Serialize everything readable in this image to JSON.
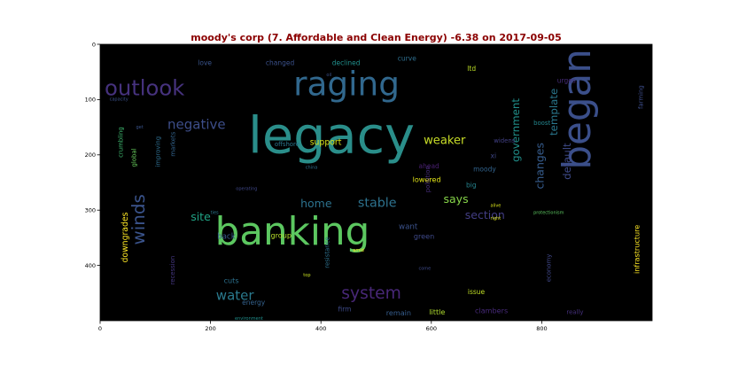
{
  "chart_data": {
    "type": "wordcloud",
    "title": "moody's corp (7. Affordable and Clean Energy) -6.38 on 2017-09-05",
    "xlim": [
      0,
      1000
    ],
    "ylim": [
      500,
      0
    ],
    "x_ticks": [
      0,
      200,
      400,
      600,
      800
    ],
    "y_ticks": [
      0,
      100,
      200,
      300,
      400
    ],
    "background": "#000000",
    "words": [
      {
        "text": "legacy",
        "x": 268,
        "y": 196,
        "size": 92,
        "color": "#2a8e8a",
        "rotate": 0
      },
      {
        "text": "banking",
        "x": 208,
        "y": 362,
        "size": 70,
        "color": "#5cc760",
        "rotate": 0
      },
      {
        "text": "began",
        "x": 888,
        "y": 227,
        "size": 70,
        "color": "#3b4f8a",
        "rotate": 90
      },
      {
        "text": "raging",
        "x": 350,
        "y": 92,
        "size": 60,
        "color": "#31688e",
        "rotate": 0
      },
      {
        "text": "outlook",
        "x": 8,
        "y": 92,
        "size": 39,
        "color": "#46327e",
        "rotate": 0
      },
      {
        "text": "winds",
        "x": 80,
        "y": 363,
        "size": 32,
        "color": "#3a538b",
        "rotate": 90
      },
      {
        "text": "system",
        "x": 437,
        "y": 460,
        "size": 30,
        "color": "#482777",
        "rotate": 0
      },
      {
        "text": "water",
        "x": 210,
        "y": 462,
        "size": 24,
        "color": "#2a7a8e",
        "rotate": 0
      },
      {
        "text": "negative",
        "x": 122,
        "y": 153,
        "size": 24,
        "color": "#3d4e8a",
        "rotate": 0
      },
      {
        "text": "stable",
        "x": 467,
        "y": 294,
        "size": 23,
        "color": "#2d728e",
        "rotate": 0
      },
      {
        "text": "weaker",
        "x": 586,
        "y": 180,
        "size": 21,
        "color": "#c9de28",
        "rotate": 0
      },
      {
        "text": "section",
        "x": 661,
        "y": 316,
        "size": 20,
        "color": "#433e85",
        "rotate": 0
      },
      {
        "text": "site",
        "x": 164,
        "y": 319,
        "size": 20,
        "color": "#20a385",
        "rotate": 0
      },
      {
        "text": "home",
        "x": 363,
        "y": 295,
        "size": 20,
        "color": "#2c728e",
        "rotate": 0
      },
      {
        "text": "says",
        "x": 622,
        "y": 287,
        "size": 20,
        "color": "#86d549",
        "rotate": 0
      },
      {
        "text": "changes",
        "x": 803,
        "y": 262,
        "size": 20,
        "color": "#365c8d",
        "rotate": 90
      },
      {
        "text": "template",
        "x": 828,
        "y": 165,
        "size": 19,
        "color": "#2a788e",
        "rotate": 90
      },
      {
        "text": "default",
        "x": 852,
        "y": 245,
        "size": 19,
        "color": "#3e4a89",
        "rotate": 90
      },
      {
        "text": "government",
        "x": 759,
        "y": 213,
        "size": 19,
        "color": "#21918c",
        "rotate": 90
      },
      {
        "text": "support",
        "x": 380,
        "y": 182,
        "size": 15,
        "color": "#d8e219",
        "rotate": 0
      },
      {
        "text": "downgrades",
        "x": 50,
        "y": 395,
        "size": 15,
        "color": "#fde725",
        "rotate": 90
      },
      {
        "text": "want",
        "x": 541,
        "y": 334,
        "size": 14,
        "color": "#3b528b",
        "rotate": 0
      },
      {
        "text": "back",
        "x": 212,
        "y": 352,
        "size": 14,
        "color": "#38588c",
        "rotate": 0
      },
      {
        "text": "lowered",
        "x": 566,
        "y": 249,
        "size": 13,
        "color": "#e2e418",
        "rotate": 0
      },
      {
        "text": "cuts",
        "x": 224,
        "y": 432,
        "size": 13,
        "color": "#2c718e",
        "rotate": 0
      },
      {
        "text": "group",
        "x": 309,
        "y": 350,
        "size": 13,
        "color": "#b5de2b",
        "rotate": 0
      },
      {
        "text": "green",
        "x": 568,
        "y": 352,
        "size": 13,
        "color": "#3e4989",
        "rotate": 0
      },
      {
        "text": "infrastructure",
        "x": 977,
        "y": 415,
        "size": 13,
        "color": "#fde725",
        "rotate": 90
      },
      {
        "text": "little",
        "x": 596,
        "y": 489,
        "size": 13,
        "color": "#b0dd2f",
        "rotate": 0
      },
      {
        "text": "remain",
        "x": 518,
        "y": 490,
        "size": 13,
        "color": "#365d8d",
        "rotate": 0
      },
      {
        "text": "clambers",
        "x": 679,
        "y": 486,
        "size": 13,
        "color": "#472a7a",
        "rotate": 0
      },
      {
        "text": "issue",
        "x": 666,
        "y": 452,
        "size": 12,
        "color": "#c0df25",
        "rotate": 0
      },
      {
        "text": "moody",
        "x": 676,
        "y": 230,
        "size": 12,
        "color": "#32648e",
        "rotate": 0
      },
      {
        "text": "big",
        "x": 663,
        "y": 259,
        "size": 12,
        "color": "#25838e",
        "rotate": 0
      },
      {
        "text": "ahead",
        "x": 577,
        "y": 224,
        "size": 12,
        "color": "#481f70",
        "rotate": 0
      },
      {
        "text": "xi",
        "x": 707,
        "y": 206,
        "size": 12,
        "color": "#3f4788",
        "rotate": 0
      },
      {
        "text": "firm",
        "x": 431,
        "y": 483,
        "size": 12,
        "color": "#3e4a89",
        "rotate": 0
      },
      {
        "text": "energy",
        "x": 257,
        "y": 471,
        "size": 12,
        "color": "#34618d",
        "rotate": 0
      },
      {
        "text": "declined",
        "x": 420,
        "y": 38,
        "size": 12,
        "color": "#21908d",
        "rotate": 0
      },
      {
        "text": "changed",
        "x": 300,
        "y": 38,
        "size": 12,
        "color": "#3b518b",
        "rotate": 0
      },
      {
        "text": "love",
        "x": 177,
        "y": 38,
        "size": 12,
        "color": "#3a548c",
        "rotate": 0
      },
      {
        "text": "curve",
        "x": 539,
        "y": 30,
        "size": 12,
        "color": "#2e6e8e",
        "rotate": 0
      },
      {
        "text": "ltd",
        "x": 665,
        "y": 48,
        "size": 12,
        "color": "#bddf26",
        "rotate": 0
      },
      {
        "text": "urges",
        "x": 828,
        "y": 70,
        "size": 12,
        "color": "#472d7b",
        "rotate": 0
      },
      {
        "text": "farming",
        "x": 983,
        "y": 117,
        "size": 11,
        "color": "#3d4d8a",
        "rotate": 90
      },
      {
        "text": "boost",
        "x": 785,
        "y": 146,
        "size": 11,
        "color": "#24868e",
        "rotate": 0
      },
      {
        "text": "widens",
        "x": 713,
        "y": 178,
        "size": 11,
        "color": "#424186",
        "rotate": 0
      },
      {
        "text": "offshore",
        "x": 316,
        "y": 184,
        "size": 11,
        "color": "#2a778e",
        "rotate": 0
      },
      {
        "text": "crumbling",
        "x": 41,
        "y": 205,
        "size": 11,
        "color": "#40bd72",
        "rotate": 90
      },
      {
        "text": "global",
        "x": 65,
        "y": 222,
        "size": 11,
        "color": "#67cc5c",
        "rotate": 90
      },
      {
        "text": "markets",
        "x": 136,
        "y": 203,
        "size": 11,
        "color": "#33638d",
        "rotate": 90
      },
      {
        "text": "improving",
        "x": 108,
        "y": 222,
        "size": 11,
        "color": "#2e6d8e",
        "rotate": 90
      },
      {
        "text": "pollution",
        "x": 597,
        "y": 268,
        "size": 11,
        "color": "#472d7b",
        "rotate": 90
      },
      {
        "text": "resistance",
        "x": 415,
        "y": 405,
        "size": 11,
        "color": "#2d718e",
        "rotate": 90
      },
      {
        "text": "economy",
        "x": 816,
        "y": 430,
        "size": 11,
        "color": "#3f4788",
        "rotate": 90
      },
      {
        "text": "recession",
        "x": 135,
        "y": 435,
        "size": 11,
        "color": "#453781",
        "rotate": 90
      },
      {
        "text": "really",
        "x": 845,
        "y": 488,
        "size": 11,
        "color": "#46307e",
        "rotate": 0
      },
      {
        "text": "protectionism",
        "x": 785,
        "y": 307,
        "size": 8,
        "color": "#5ec962",
        "rotate": 0
      },
      {
        "text": "capacity",
        "x": 17,
        "y": 102,
        "size": 8,
        "color": "#3b518b",
        "rotate": 0
      },
      {
        "text": "get",
        "x": 65,
        "y": 152,
        "size": 8,
        "color": "#3a548c",
        "rotate": 0
      },
      {
        "text": "china",
        "x": 372,
        "y": 225,
        "size": 8,
        "color": "#2e6e8e",
        "rotate": 0
      },
      {
        "text": "operating",
        "x": 246,
        "y": 264,
        "size": 8,
        "color": "#3f4788",
        "rotate": 0
      },
      {
        "text": "ties",
        "x": 200,
        "y": 307,
        "size": 8,
        "color": "#2a778e",
        "rotate": 0
      },
      {
        "text": "right",
        "x": 707,
        "y": 317,
        "size": 8,
        "color": "#d8e219",
        "rotate": 0
      },
      {
        "text": "alive",
        "x": 707,
        "y": 294,
        "size": 8,
        "color": "#d8e219",
        "rotate": 0
      },
      {
        "text": "amid",
        "x": 458,
        "y": 375,
        "size": 8,
        "color": "#fde725",
        "rotate": 0
      },
      {
        "text": "top",
        "x": 368,
        "y": 420,
        "size": 8,
        "color": "#c8e020",
        "rotate": 0
      },
      {
        "text": "come",
        "x": 577,
        "y": 408,
        "size": 8,
        "color": "#3e4a89",
        "rotate": 0
      },
      {
        "text": "environment",
        "x": 244,
        "y": 498,
        "size": 8,
        "color": "#21908d",
        "rotate": 0
      },
      {
        "text": "oil",
        "x": 410,
        "y": 58,
        "size": 8,
        "color": "#3b528b",
        "rotate": 0
      }
    ]
  }
}
